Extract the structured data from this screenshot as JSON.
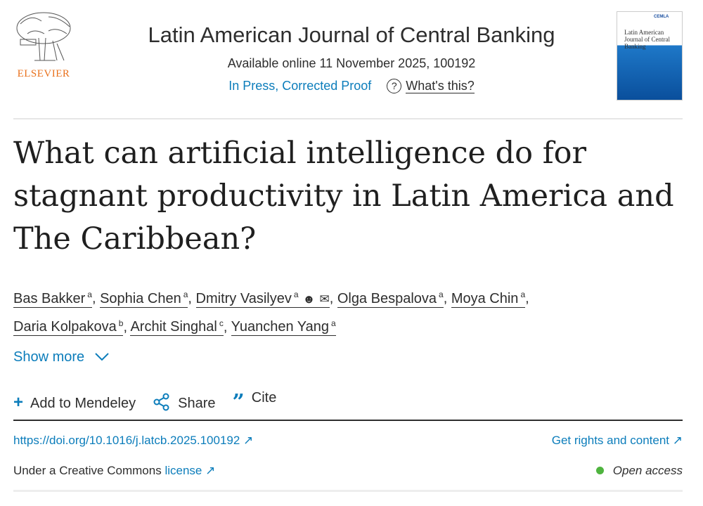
{
  "publisher": {
    "name": "ELSEVIER",
    "color": "#e9711c"
  },
  "journal": {
    "title": "Latin American Journal of Central Banking",
    "available": "Available online 11 November 2025, 100192",
    "status": "In Press, Corrected Proof",
    "whats_this": "What's this?",
    "cover_title": "Latin American Journal of Central Banking",
    "cover_brand": "CEMLA"
  },
  "article": {
    "title": "What can artificial intelligence do for stagnant productivity in Latin America and The Caribbean?"
  },
  "authors": [
    {
      "name": "Bas Bakker",
      "aff": "a"
    },
    {
      "name": "Sophia Chen",
      "aff": "a"
    },
    {
      "name": "Dmitry Vasilyev",
      "aff": "a"
    },
    {
      "name": "Olga Bespalova",
      "aff": "a"
    },
    {
      "name": "Moya Chin",
      "aff": "a"
    },
    {
      "name": "Daria Kolpakova",
      "aff": "b"
    },
    {
      "name": "Archit Singhal",
      "aff": "c"
    },
    {
      "name": "Yuanchen Yang",
      "aff": "a"
    }
  ],
  "show_more": "Show more",
  "actions": {
    "mendeley": "Add to Mendeley",
    "share": "Share",
    "cite": "Cite"
  },
  "links": {
    "doi": "https://doi.org/10.1016/j.latcb.2025.100192",
    "rights": "Get rights and content",
    "license_prefix": "Under a Creative Commons",
    "license": "license",
    "open_access": "Open access"
  },
  "colors": {
    "link": "#0c7dbb",
    "open_access_dot": "#4fb43f"
  }
}
